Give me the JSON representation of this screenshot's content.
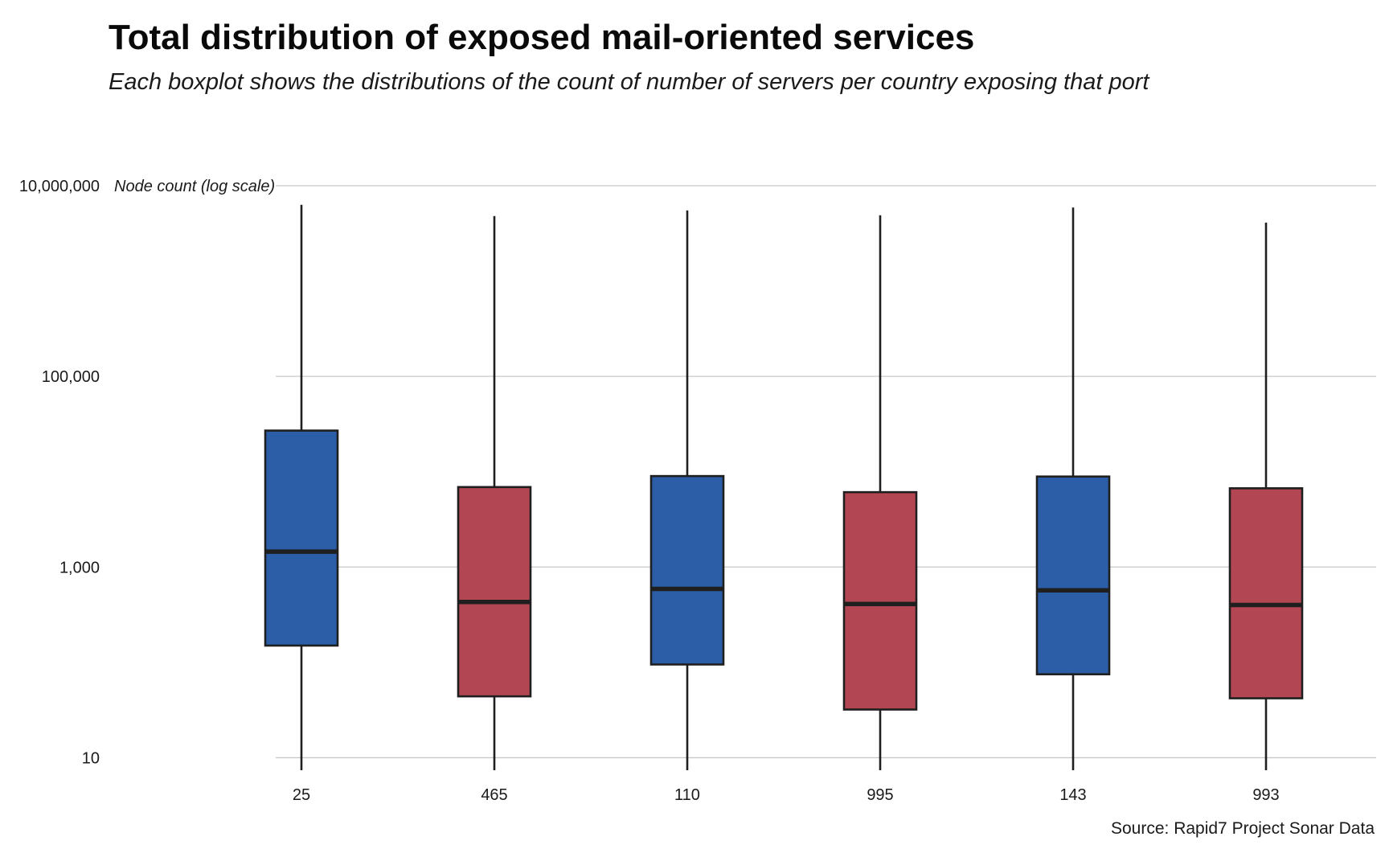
{
  "chart_data": {
    "type": "boxplot",
    "title": "Total distribution of exposed mail-oriented services",
    "subtitle": "Each boxplot shows the distributions of the count of number of servers per country exposing that port",
    "ylabel": "Node count (log scale)",
    "xlabel": "",
    "caption": "Source: Rapid7 Project Sonar Data",
    "y_scale": "log10",
    "ylim": [
      1,
      10000000
    ],
    "y_ticks": [
      10,
      1000,
      100000,
      10000000
    ],
    "y_tick_labels": [
      "10",
      "1,000",
      "100,000",
      "10,000,000"
    ],
    "grid": true,
    "colors": {
      "blue": "#2b5ea7",
      "red": "#b24753",
      "outline": "#1f1f1f",
      "grid": "#c8c8c8"
    },
    "categories": [
      "25",
      "465",
      "110",
      "995",
      "143",
      "993"
    ],
    "boxes": [
      {
        "category": "25",
        "color": "blue",
        "min": 3,
        "q1": 150,
        "median": 1450,
        "q3": 27000,
        "max": 6300000
      },
      {
        "category": "465",
        "color": "red",
        "min": 1,
        "q1": 44,
        "median": 430,
        "q3": 6900,
        "max": 4800000
      },
      {
        "category": "110",
        "color": "blue",
        "min": 1,
        "q1": 95,
        "median": 590,
        "q3": 9000,
        "max": 5500000
      },
      {
        "category": "995",
        "color": "red",
        "min": 1,
        "q1": 32,
        "median": 410,
        "q3": 6100,
        "max": 4900000
      },
      {
        "category": "143",
        "color": "blue",
        "min": 1,
        "q1": 75,
        "median": 570,
        "q3": 8900,
        "max": 5900000
      },
      {
        "category": "993",
        "color": "red",
        "min": 1,
        "q1": 42,
        "median": 400,
        "q3": 6700,
        "max": 4100000
      }
    ]
  }
}
